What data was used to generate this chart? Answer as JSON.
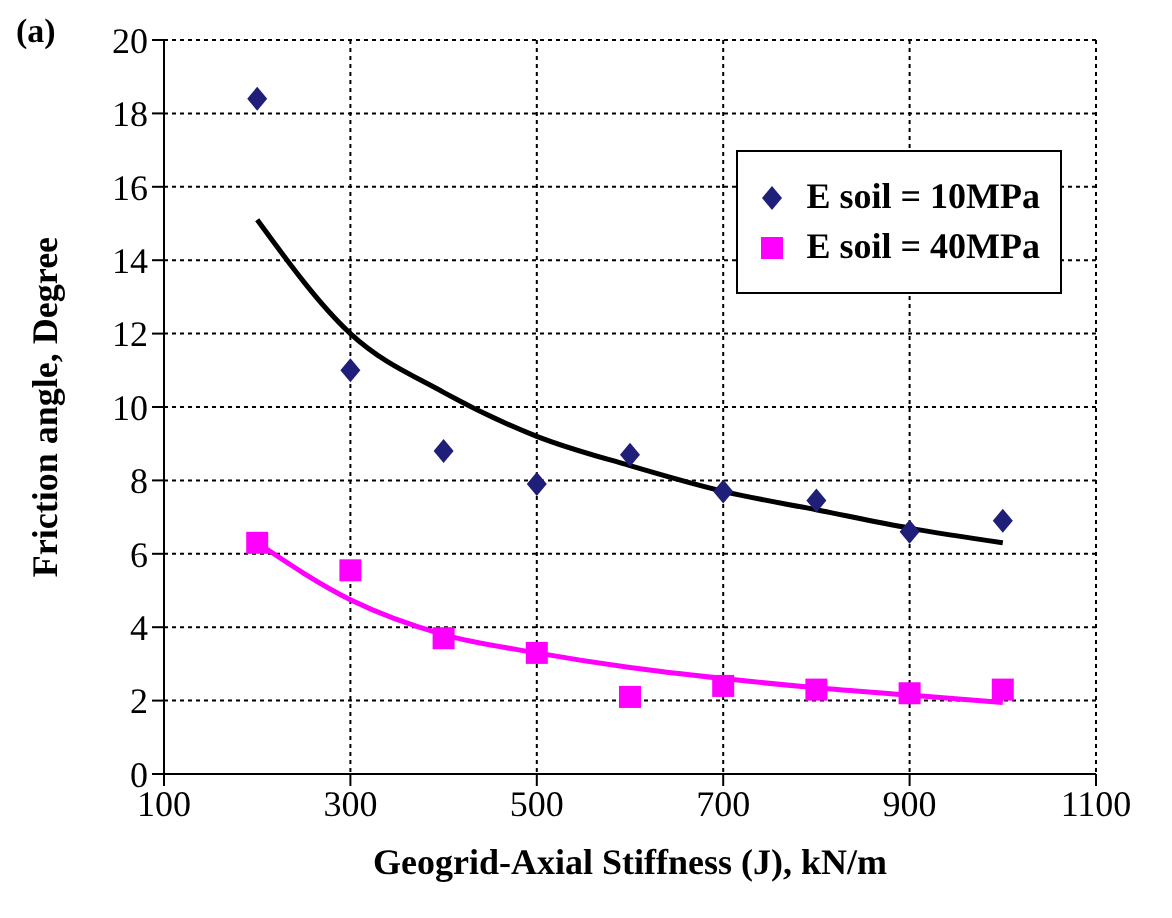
{
  "chart_data": {
    "type": "scatter",
    "title": "(a)",
    "xlabel": "Geogrid-Axial Stiffness (J), kN/m",
    "ylabel": "Friction angle, Degree",
    "xlim": [
      100,
      1100
    ],
    "xticks": [
      100,
      300,
      500,
      700,
      900,
      1100
    ],
    "ylim": [
      0,
      20
    ],
    "yticks": [
      0,
      2,
      4,
      6,
      8,
      10,
      12,
      14,
      16,
      18,
      20
    ],
    "grid": true,
    "legend": "top right",
    "series": [
      {
        "name": "E soil = 10MPa",
        "marker": "diamond",
        "color": "#1f1f7a",
        "x": [
          200,
          300,
          400,
          500,
          600,
          700,
          800,
          900,
          1000
        ],
        "values": [
          18.4,
          11.0,
          8.8,
          7.9,
          8.7,
          7.7,
          7.45,
          6.6,
          6.9
        ]
      },
      {
        "name": "E soil = 40MPa",
        "marker": "square",
        "color": "#ff00ff",
        "x": [
          200,
          300,
          400,
          500,
          600,
          700,
          800,
          900,
          1000
        ],
        "values": [
          6.3,
          5.55,
          3.7,
          3.3,
          2.1,
          2.4,
          2.3,
          2.2,
          2.3
        ]
      },
      {
        "type": "line",
        "marker": "none",
        "color": "#000000",
        "x": [
          200,
          300,
          400,
          500,
          600,
          700,
          800,
          900,
          1000
        ],
        "values": [
          15.1,
          12.0,
          10.4,
          9.2,
          8.4,
          7.7,
          7.2,
          6.7,
          6.3
        ]
      },
      {
        "type": "line",
        "marker": "none",
        "color": "#ff00ff",
        "x": [
          200,
          300,
          400,
          500,
          600,
          700,
          800,
          900,
          1000
        ],
        "values": [
          6.3,
          4.75,
          3.8,
          3.3,
          2.9,
          2.6,
          2.35,
          2.15,
          1.95
        ]
      }
    ]
  }
}
